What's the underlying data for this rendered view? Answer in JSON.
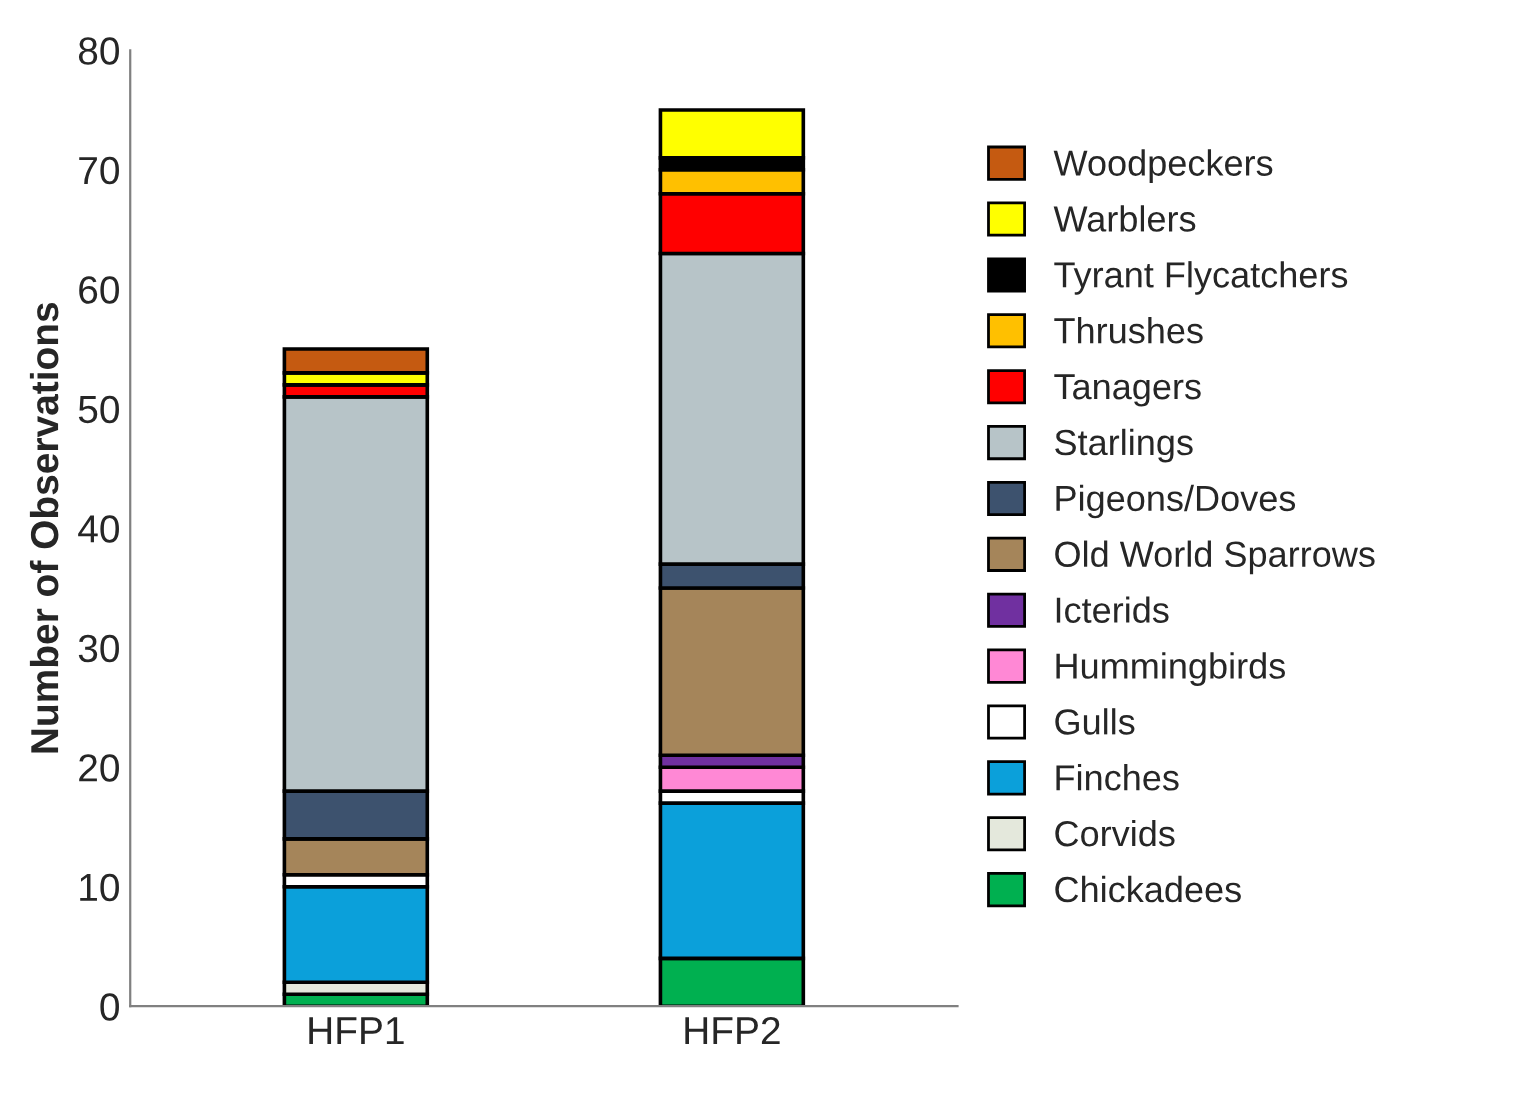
{
  "chart_data": {
    "type": "bar",
    "stacked": true,
    "ylabel": "Number of Observations",
    "categories": [
      "HFP1",
      "HFP2"
    ],
    "series": [
      {
        "name": "Chickadees",
        "color": "#00b050",
        "values": [
          1,
          4
        ]
      },
      {
        "name": "Corvids",
        "color": "#e4e8dc",
        "values": [
          1,
          0
        ]
      },
      {
        "name": "Finches",
        "color": "#0ba0da",
        "values": [
          8,
          13
        ]
      },
      {
        "name": "Gulls",
        "color": "#ffffff",
        "values": [
          1,
          1
        ]
      },
      {
        "name": "Hummingbirds",
        "color": "#ff88d5",
        "values": [
          0,
          2
        ]
      },
      {
        "name": "Icterids",
        "color": "#7030a0",
        "values": [
          0,
          1
        ]
      },
      {
        "name": "Old World Sparrows",
        "color": "#a5855a",
        "values": [
          3,
          14
        ]
      },
      {
        "name": "Pigeons/Doves",
        "color": "#3d526e",
        "values": [
          4,
          2
        ]
      },
      {
        "name": "Starlings",
        "color": "#b7c4c8",
        "values": [
          33,
          26
        ]
      },
      {
        "name": "Tanagers",
        "color": "#ff0000",
        "values": [
          1,
          5
        ]
      },
      {
        "name": "Thrushes",
        "color": "#ffc000",
        "values": [
          0,
          2
        ]
      },
      {
        "name": "Tyrant Flycatchers",
        "color": "#000000",
        "values": [
          0,
          1
        ]
      },
      {
        "name": "Warblers",
        "color": "#ffff00",
        "values": [
          1,
          4
        ]
      },
      {
        "name": "Woodpeckers",
        "color": "#c55a11",
        "values": [
          2,
          0
        ]
      }
    ],
    "ylim": [
      0,
      80
    ],
    "yticks": [
      0,
      10,
      20,
      30,
      40,
      50,
      60,
      70,
      80
    ],
    "grid": false,
    "legend": "right"
  }
}
